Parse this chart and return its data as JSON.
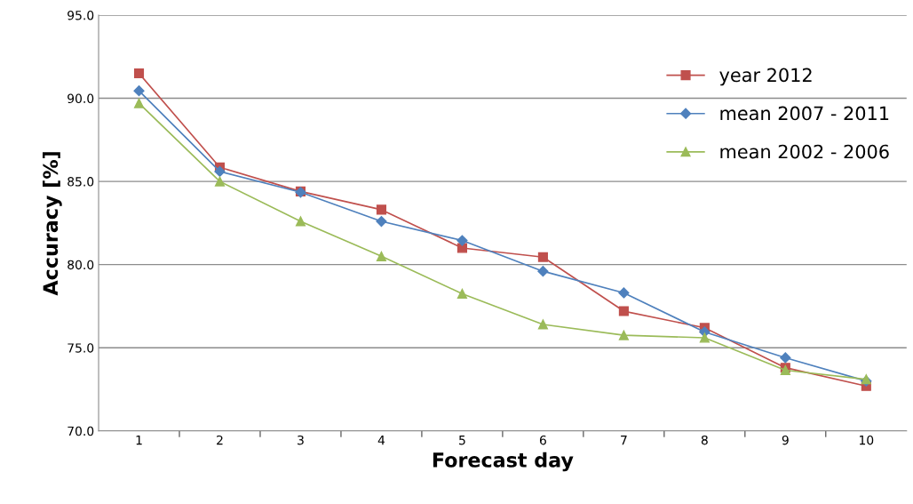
{
  "chart_data": {
    "type": "line",
    "xlabel": "Forecast day",
    "ylabel": "Accuracy [%]",
    "categories": [
      "1",
      "2",
      "3",
      "4",
      "5",
      "6",
      "7",
      "8",
      "9",
      "10"
    ],
    "ylim": [
      70,
      95
    ],
    "yticks": [
      {
        "value": 70,
        "label": "70.0"
      },
      {
        "value": 75,
        "label": "75.0"
      },
      {
        "value": 80,
        "label": "80.0"
      },
      {
        "value": 85,
        "label": "85.0"
      },
      {
        "value": 90,
        "label": "90.0"
      },
      {
        "value": 95,
        "label": "95.0"
      }
    ],
    "grid": "y",
    "legend": "right",
    "series": [
      {
        "name": "year 2012",
        "color": "#c0504d",
        "marker": "square",
        "values": [
          91.5,
          85.85,
          84.4,
          83.3,
          81.0,
          80.45,
          77.2,
          76.2,
          73.8,
          72.7
        ]
      },
      {
        "name": "mean 2007 - 2011",
        "color": "#4f81bd",
        "marker": "diamond",
        "values": [
          90.45,
          85.6,
          84.35,
          82.6,
          81.45,
          79.6,
          78.3,
          75.95,
          74.4,
          73.0
        ]
      },
      {
        "name": "mean 2002 - 2006",
        "color": "#9bbb59",
        "marker": "triangle",
        "values": [
          89.7,
          85.0,
          82.6,
          80.5,
          78.25,
          76.4,
          75.75,
          75.6,
          73.65,
          73.1
        ]
      }
    ]
  }
}
